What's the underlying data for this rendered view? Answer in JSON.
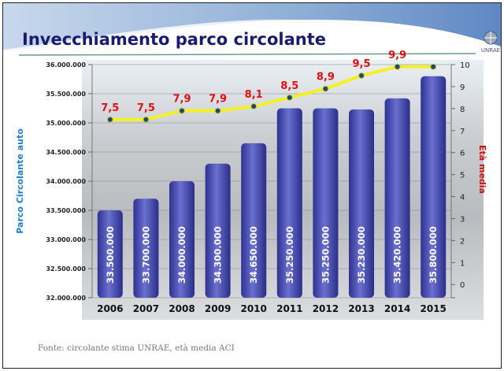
{
  "slide": {
    "title": "Invecchiamento parco circolante",
    "footer": "Fonte: circolante stima UNRAE, età media ACI",
    "logo_text": "UNRAE"
  },
  "chart_data": {
    "type": "bar+line",
    "categories": [
      "2006",
      "2007",
      "2008",
      "2009",
      "2010",
      "2011",
      "2012",
      "2013",
      "2014",
      "2015"
    ],
    "series": [
      {
        "name": "Parco Circolante auto",
        "type": "bar",
        "axis": "left",
        "values": [
          33500000,
          33700000,
          34000000,
          34300000,
          34650000,
          35250000,
          35250000,
          35230000,
          35420000,
          35800000
        ],
        "labels": [
          "33.500.000",
          "33.700.000",
          "34.000.000",
          "34.300.000",
          "34.650.000",
          "35.250.000",
          "35.250.000",
          "35.230.000",
          "35.420.000",
          "35.800.000"
        ],
        "color": "#4a4fb0"
      },
      {
        "name": "Età media",
        "type": "line",
        "axis": "right",
        "values": [
          7.5,
          7.5,
          7.9,
          7.9,
          8.1,
          8.5,
          8.9,
          9.5,
          9.9,
          9.9
        ],
        "labels": [
          "7,5",
          "7,5",
          "7,9",
          "7,9",
          "8,1",
          "8,5",
          "8,9",
          "9,5",
          "9,9",
          ""
        ],
        "color": "#f5f020",
        "marker_color": "#1f4a6e",
        "label_color": "#e01010"
      }
    ],
    "ylabel_left": "Parco Circolante auto",
    "ylabel_right": "Età media",
    "ylim_left": [
      32000000,
      36000000
    ],
    "yticks_left": [
      "32.000.000",
      "32.500.000",
      "33.000.000",
      "33.500.000",
      "34.000.000",
      "34.500.000",
      "35.000.000",
      "35.500.000",
      "36.000.000"
    ],
    "ylim_right": [
      -0.6,
      10
    ],
    "yticks_right": [
      "0",
      "1",
      "2",
      "3",
      "4",
      "5",
      "6",
      "7",
      "8",
      "9",
      "10"
    ],
    "grid": true,
    "colors": {
      "left_label": "#1e7fd0",
      "right_label": "#d01010",
      "title": "#1a1a6e"
    }
  }
}
